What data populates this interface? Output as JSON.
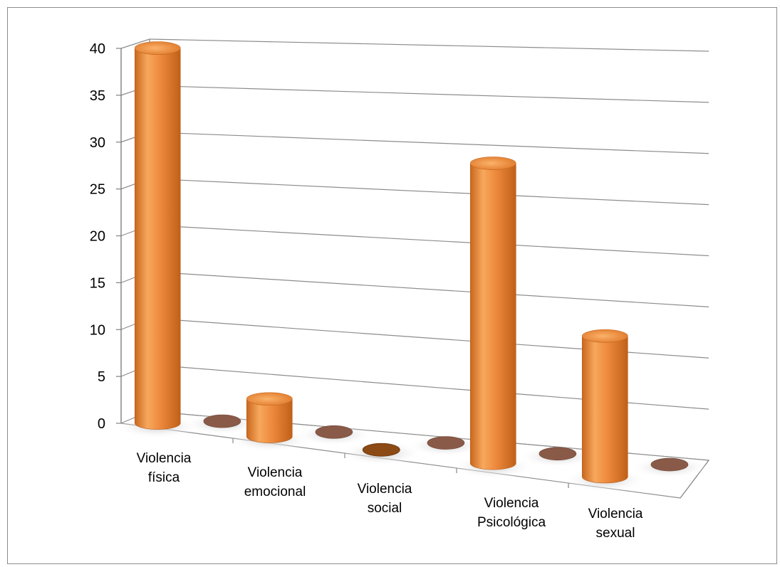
{
  "chart_data": {
    "type": "bar",
    "style": "3d-cylinder",
    "categories": [
      [
        "Violencia",
        "física"
      ],
      [
        "Violencia",
        "emocional"
      ],
      [
        "Violencia",
        "social"
      ],
      [
        "Violencia",
        "Psicológica"
      ],
      [
        "Violencia",
        "sexual"
      ]
    ],
    "series": [
      {
        "values": [
          40,
          4,
          0,
          32,
          15
        ],
        "color": "#e8883c"
      },
      {
        "values": [
          0,
          0,
          0,
          0,
          0
        ],
        "color": "#8a5a48"
      }
    ],
    "ylim": [
      0,
      40
    ],
    "yticks": [
      0,
      5,
      10,
      15,
      20,
      25,
      30,
      35,
      40
    ],
    "grid": true,
    "legend": "none"
  }
}
